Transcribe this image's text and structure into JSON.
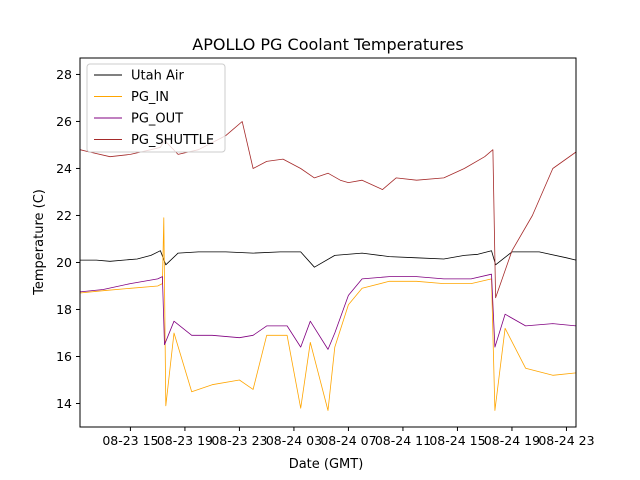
{
  "chart_data": {
    "type": "line",
    "title": "APOLLO PG Coolant Temperatures",
    "xlabel": "Date (GMT)",
    "ylabel": "Temperature (C)",
    "x_unit": "hours since 2023-08-23 00:00 GMT",
    "xlim": [
      11.3,
      47.7
    ],
    "ylim": [
      13.0,
      28.7
    ],
    "x_ticks": [
      {
        "value": 15,
        "label": "08-23 15"
      },
      {
        "value": 19,
        "label": "08-23 19"
      },
      {
        "value": 23,
        "label": "08-23 23"
      },
      {
        "value": 27,
        "label": "08-24 03"
      },
      {
        "value": 31,
        "label": "08-24 07"
      },
      {
        "value": 35,
        "label": "08-24 11"
      },
      {
        "value": 39,
        "label": "08-24 15"
      },
      {
        "value": 43,
        "label": "08-24 19"
      },
      {
        "value": 47,
        "label": "08-24 23"
      }
    ],
    "y_ticks": [
      {
        "value": 14,
        "label": "14"
      },
      {
        "value": 16,
        "label": "16"
      },
      {
        "value": 18,
        "label": "18"
      },
      {
        "value": 20,
        "label": "20"
      },
      {
        "value": 22,
        "label": "22"
      },
      {
        "value": 24,
        "label": "24"
      },
      {
        "value": 26,
        "label": "26"
      },
      {
        "value": 28,
        "label": "28"
      }
    ],
    "legend_position": "top-left",
    "series": [
      {
        "name": "Utah Air",
        "color": "#000000",
        "x": [
          11.3,
          12.5,
          13.5,
          14.5,
          15.5,
          16.5,
          17.2,
          17.6,
          18.5,
          20,
          22,
          24,
          26,
          27.5,
          28.5,
          30,
          32,
          34,
          36,
          38,
          39.5,
          40.5,
          41.5,
          41.8,
          43,
          45,
          47,
          47.7
        ],
        "values": [
          20.1,
          20.1,
          20.05,
          20.1,
          20.15,
          20.3,
          20.5,
          19.9,
          20.4,
          20.45,
          20.45,
          20.4,
          20.45,
          20.45,
          19.8,
          20.3,
          20.4,
          20.25,
          20.2,
          20.15,
          20.3,
          20.35,
          20.5,
          19.9,
          20.45,
          20.45,
          20.2,
          20.1
        ]
      },
      {
        "name": "PG_IN",
        "color": "#ffa500",
        "x": [
          11.3,
          13,
          15,
          17,
          17.35,
          17.45,
          17.6,
          18.2,
          19.5,
          21,
          23,
          24,
          25,
          26.5,
          27.5,
          28.2,
          29.5,
          30,
          31,
          32,
          34,
          36,
          38,
          40,
          41.5,
          41.75,
          42.5,
          44,
          46,
          47.7
        ],
        "values": [
          18.7,
          18.8,
          18.9,
          19.0,
          19.1,
          21.9,
          13.9,
          17.0,
          14.5,
          14.8,
          15.0,
          14.6,
          16.9,
          16.9,
          13.8,
          16.6,
          13.7,
          16.4,
          18.2,
          18.9,
          19.2,
          19.2,
          19.1,
          19.1,
          19.3,
          13.7,
          17.2,
          15.5,
          15.2,
          15.3
        ]
      },
      {
        "name": "PG_OUT",
        "color": "#800080",
        "x": [
          11.3,
          13,
          15,
          17,
          17.35,
          17.5,
          18.2,
          19.5,
          21,
          23,
          24,
          25,
          26.5,
          27.5,
          28.2,
          29.5,
          30,
          31,
          32,
          34,
          36,
          38,
          40,
          41.5,
          41.75,
          42.5,
          44,
          46,
          47.7
        ],
        "values": [
          18.75,
          18.85,
          19.1,
          19.3,
          19.4,
          16.5,
          17.5,
          16.9,
          16.9,
          16.8,
          16.9,
          17.3,
          17.3,
          16.4,
          17.5,
          16.3,
          17.0,
          18.6,
          19.3,
          19.4,
          19.4,
          19.3,
          19.3,
          19.5,
          16.4,
          17.8,
          17.3,
          17.4,
          17.3
        ]
      },
      {
        "name": "PG_SHUTTLE",
        "color": "#a52a2a",
        "x": [
          11.3,
          12,
          13.5,
          15,
          16.5,
          17.2,
          17.5,
          18.5,
          20,
          22,
          23.2,
          24,
          25,
          26.2,
          27.5,
          28.5,
          29.5,
          30.4,
          31,
          32,
          33.5,
          34.5,
          36,
          38,
          39.5,
          41,
          41.6,
          41.8,
          43,
          44.5,
          46,
          47.7
        ],
        "values": [
          24.8,
          24.7,
          24.5,
          24.6,
          24.8,
          24.9,
          25.2,
          24.6,
          24.8,
          25.4,
          26.0,
          24.0,
          24.3,
          24.4,
          24.0,
          23.6,
          23.8,
          23.5,
          23.4,
          23.5,
          23.1,
          23.6,
          23.5,
          23.6,
          24.0,
          24.5,
          24.8,
          18.5,
          20.5,
          22.0,
          24.0,
          24.7
        ]
      }
    ]
  }
}
